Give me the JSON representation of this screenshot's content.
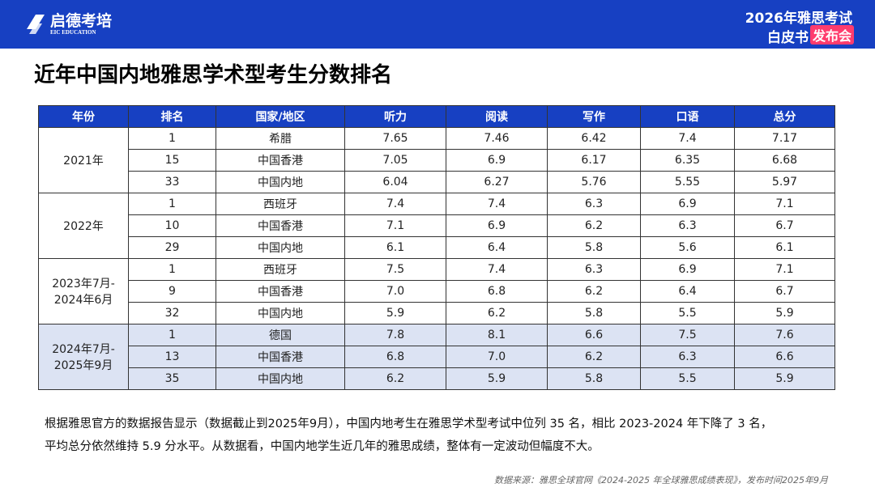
{
  "header": {
    "logo_name": "启德考培",
    "logo_sub": "EIC EDUCATION",
    "event_line1": "2026年雅思考试",
    "event_line2": "白皮书",
    "event_badge": "发布会"
  },
  "title": "近年中国内地雅思学术型考生分数排名",
  "table": {
    "columns": [
      "年份",
      "排名",
      "国家/地区",
      "听力",
      "阅读",
      "写作",
      "口语",
      "总分"
    ],
    "groups": [
      {
        "year_lines": [
          "2021年"
        ],
        "rows": [
          [
            "1",
            "希腊",
            "7.65",
            "7.46",
            "6.42",
            "7.4",
            "7.17"
          ],
          [
            "15",
            "中国香港",
            "7.05",
            "6.9",
            "6.17",
            "6.35",
            "6.68"
          ],
          [
            "33",
            "中国内地",
            "6.04",
            "6.27",
            "5.76",
            "5.55",
            "5.97"
          ]
        ]
      },
      {
        "year_lines": [
          "2022年"
        ],
        "rows": [
          [
            "1",
            "西班牙",
            "7.4",
            "7.4",
            "6.3",
            "6.9",
            "7.1"
          ],
          [
            "10",
            "中国香港",
            "7.1",
            "6.9",
            "6.2",
            "6.3",
            "6.7"
          ],
          [
            "29",
            "中国内地",
            "6.1",
            "6.4",
            "5.8",
            "5.6",
            "6.1"
          ]
        ]
      },
      {
        "year_lines": [
          "2023年7月-",
          "2024年6月"
        ],
        "rows": [
          [
            "1",
            "西班牙",
            "7.5",
            "7.4",
            "6.3",
            "6.9",
            "7.1"
          ],
          [
            "9",
            "中国香港",
            "7.0",
            "6.8",
            "6.2",
            "6.4",
            "6.7"
          ],
          [
            "32",
            "中国内地",
            "5.9",
            "6.2",
            "5.8",
            "5.5",
            "5.9"
          ]
        ]
      },
      {
        "year_lines": [
          "2024年7月-",
          "2025年9月"
        ],
        "rows": [
          [
            "1",
            "德国",
            "7.8",
            "8.1",
            "6.6",
            "7.5",
            "7.6"
          ],
          [
            "13",
            "中国香港",
            "6.8",
            "7.0",
            "6.2",
            "6.3",
            "6.6"
          ],
          [
            "35",
            "中国内地",
            "6.2",
            "5.9",
            "5.8",
            "5.5",
            "5.9"
          ]
        ]
      }
    ]
  },
  "paragraph": [
    "根据雅思官方的数据报告显示（数据截止到2025年9月），中国内地考生在雅思学术型考试中位列 35 名，相比 2023-2024 年下降了 3 名，",
    "平均总分依然维持 5.9 分水平。从数据看，中国内地学生近几年的雅思成绩，整体有一定波动但幅度不大。"
  ],
  "source": "数据来源：雅思全球官网《2024-2025 年全球雅思成绩表现》，发布时间2025年9月"
}
